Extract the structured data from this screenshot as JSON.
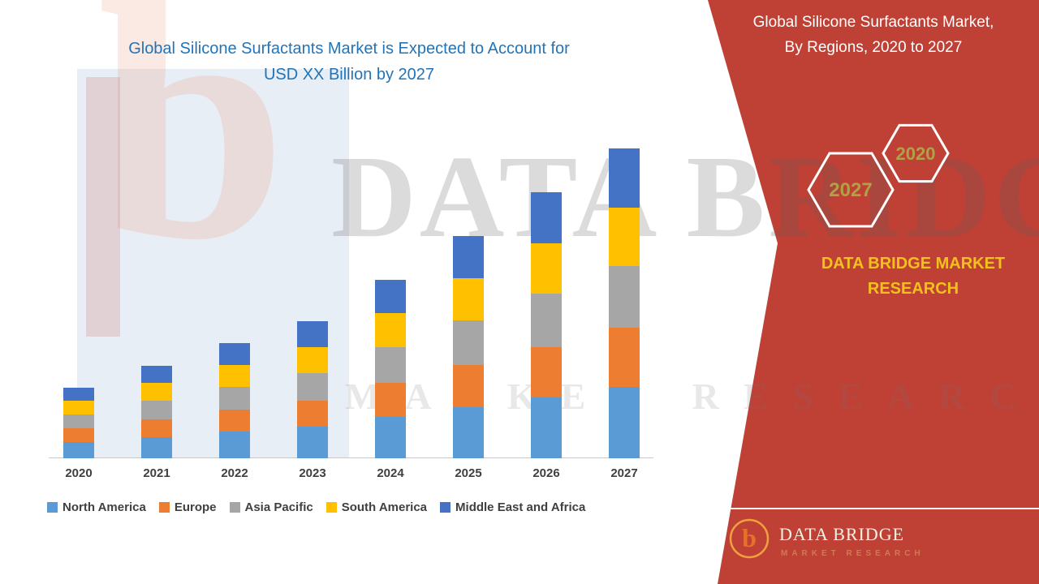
{
  "colors": {
    "panel_red": "#bf4136",
    "title_blue": "#2274b9",
    "brand_gold": "#f2c11c",
    "hex_number_olive": "#b0a144"
  },
  "chart": {
    "title_line1": "Global Silicone Surfactants Market is Expected to Account for",
    "title_line2": "USD XX Billion by 2027"
  },
  "panel": {
    "title_line1": "Global Silicone Surfactants Market,",
    "title_line2": "By Regions, 2020 to 2027",
    "hexagons": [
      {
        "label": "2027"
      },
      {
        "label": "2020"
      }
    ],
    "brand_line1": "DATA BRIDGE MARKET",
    "brand_line2": "RESEARCH"
  },
  "footer": {
    "brand": "DATA BRIDGE",
    "subtitle": "MARKET RESEARCH",
    "logo_letter": "b"
  },
  "watermark": {
    "logo_letter": "b",
    "line1": "DATA BRIDGE",
    "line2": "MARKET RESEARCH"
  },
  "chart_data": {
    "type": "bar",
    "stacked": true,
    "title": "Global Silicone Surfactants Market is Expected to Account for USD XX Billion by 2027",
    "xlabel": "",
    "ylabel": "",
    "value_axis_labeled": false,
    "values_estimated_relative_usd_billion": true,
    "ylim": [
      0,
      40
    ],
    "grid": false,
    "legend_position": "bottom",
    "categories": [
      "2020",
      "2021",
      "2022",
      "2023",
      "2024",
      "2025",
      "2026",
      "2027"
    ],
    "series": [
      {
        "name": "North America",
        "color": "#5b9bd5",
        "values": [
          2.0,
          2.6,
          3.3,
          3.9,
          5.1,
          6.3,
          7.5,
          8.8
        ]
      },
      {
        "name": "Europe",
        "color": "#ed7d31",
        "values": [
          1.7,
          2.2,
          2.7,
          3.2,
          4.2,
          5.2,
          6.2,
          7.3
        ]
      },
      {
        "name": "Asia Pacific",
        "color": "#a6a6a6",
        "values": [
          1.7,
          2.3,
          2.8,
          3.4,
          4.4,
          5.5,
          6.6,
          7.6
        ]
      },
      {
        "name": "South America",
        "color": "#ffc000",
        "values": [
          1.7,
          2.2,
          2.7,
          3.2,
          4.2,
          5.2,
          6.2,
          7.2
        ]
      },
      {
        "name": "Middle East and Africa",
        "color": "#4472c4",
        "values": [
          1.6,
          2.1,
          2.7,
          3.2,
          4.1,
          5.2,
          6.3,
          7.3
        ]
      }
    ],
    "totals": [
      8.7,
      11.4,
      14.2,
      16.9,
      22.0,
      27.4,
      32.8,
      38.2
    ]
  }
}
